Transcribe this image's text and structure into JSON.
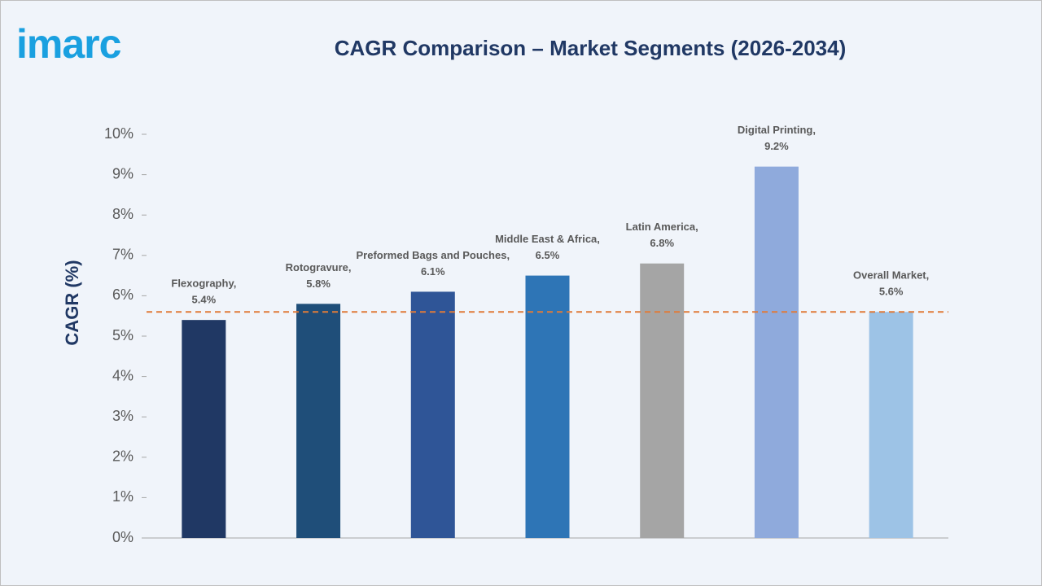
{
  "logo": "imarc",
  "chart_data": {
    "type": "bar",
    "title": "CAGR Comparison – Market Segments (2026-2034)",
    "y_label": "CAGR (%)",
    "categories": [
      "Flexography,",
      "Rotogravure,",
      "Preformed Bags and Pouches,",
      "Middle East & Africa,",
      "Latin America,",
      "Digital Printing,",
      "Overall Market,"
    ],
    "values": [
      5.4,
      5.8,
      6.1,
      6.5,
      6.8,
      9.2,
      5.6
    ],
    "value_labels": [
      "5.4%",
      "5.8%",
      "6.1%",
      "6.5%",
      "6.8%",
      "9.2%",
      "5.6%"
    ],
    "colors": [
      "#203864",
      "#1f4e79",
      "#2f5597",
      "#2e75b6",
      "#a5a5a5",
      "#8faadc",
      "#9dc3e6"
    ],
    "reference_line": 5.6,
    "reference_color": "#e07b39",
    "ylim": [
      0,
      10
    ],
    "yticks": [
      {
        "value": 0,
        "label": "0%"
      },
      {
        "value": 1,
        "label": "1%"
      },
      {
        "value": 2,
        "label": "2%"
      },
      {
        "value": 3,
        "label": "3%"
      },
      {
        "value": 4,
        "label": "4%"
      },
      {
        "value": 5,
        "label": "5%"
      },
      {
        "value": 6,
        "label": "6%"
      },
      {
        "value": 7,
        "label": "7%"
      },
      {
        "value": 8,
        "label": "8%"
      },
      {
        "value": 9,
        "label": "9%"
      },
      {
        "value": 10,
        "label": "10%"
      }
    ],
    "grid": false
  }
}
